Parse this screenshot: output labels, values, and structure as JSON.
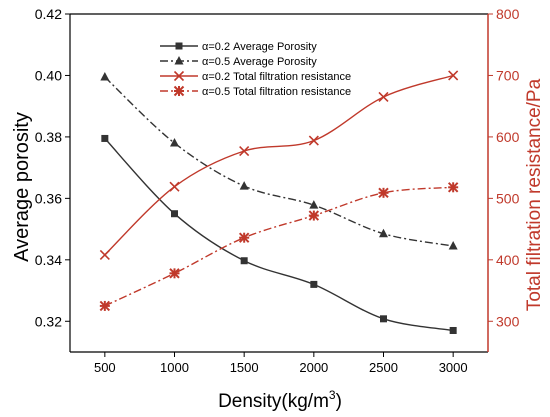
{
  "chart_data": {
    "type": "line",
    "xlabel": "Density(kg/m",
    "xlabel_sup": "3",
    "xlabel_close": ")",
    "ylabel_left": "Average porosity",
    "ylabel_right": "Total filtration resistance/Pa",
    "x": [
      500,
      1000,
      1500,
      2000,
      2500,
      3000
    ],
    "x_ticks": [
      "500",
      "1000",
      "1500",
      "2000",
      "2500",
      "3000"
    ],
    "xlim": [
      250,
      3250
    ],
    "ylim_left": [
      0.31,
      0.42
    ],
    "ylim_right": [
      250,
      800
    ],
    "yticks_left": [
      "0.32",
      "0.34",
      "0.36",
      "0.38",
      "0.40",
      "0.42"
    ],
    "yticks_right": [
      "300",
      "400",
      "500",
      "600",
      "700",
      "800"
    ],
    "grid": false,
    "legend_position": "top-center",
    "colors": {
      "left_axis": "#000000",
      "right_axis": "#c0392b",
      "porosity_series": "#333333",
      "resistance_series": "#c0392b"
    },
    "series": [
      {
        "name": "α=0.2 Average Porosity",
        "axis": "left",
        "marker": "square",
        "dash": "solid",
        "color": "#333333",
        "values": [
          0.3795,
          0.355,
          0.3397,
          0.332,
          0.3208,
          0.317
        ]
      },
      {
        "name": "α=0.5  Average Porosity",
        "axis": "left",
        "marker": "triangle",
        "dash": "dashdot",
        "color": "#333333",
        "values": [
          0.3995,
          0.378,
          0.364,
          0.3578,
          0.3485,
          0.3445
        ]
      },
      {
        "name": "α=0.2 Total filtration resistance",
        "axis": "right",
        "marker": "x",
        "dash": "solid",
        "color": "#c0392b",
        "values": [
          408,
          519,
          577,
          594,
          665,
          700
        ]
      },
      {
        "name": "α=0.5 Total filtration resistance",
        "axis": "right",
        "marker": "asterisk",
        "dash": "dashdot",
        "color": "#c0392b",
        "values": [
          325,
          378,
          436,
          472,
          509,
          518
        ]
      }
    ]
  }
}
